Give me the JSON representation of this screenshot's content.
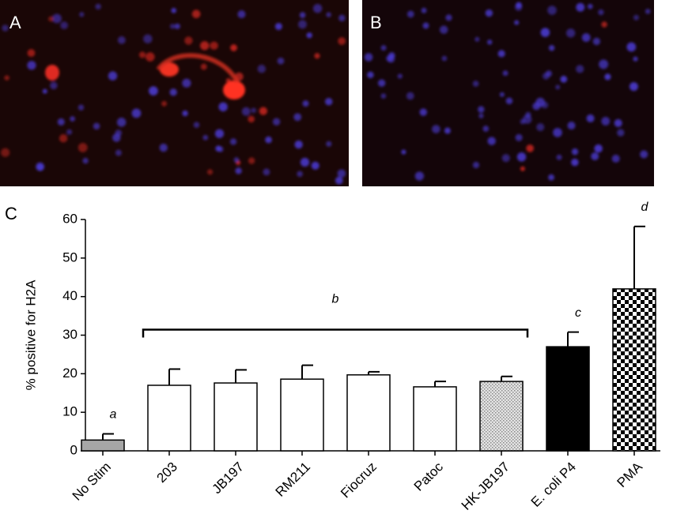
{
  "panels": {
    "a": "A",
    "b": "B",
    "c": "C"
  },
  "chart_data": {
    "type": "bar",
    "ylabel": "% positive for H2A",
    "categories": [
      "No Stim",
      "203",
      "JB197",
      "RM211",
      "Fiocruz",
      "Patoc",
      "HK-JB197",
      "E. coli P4",
      "PMA"
    ],
    "values": [
      2.8,
      17,
      17.6,
      18.6,
      19.7,
      16.6,
      18,
      27,
      42
    ],
    "errors": [
      1.6,
      4.2,
      3.4,
      3.6,
      0.8,
      1.4,
      1.3,
      3.8,
      16.2
    ],
    "fills": [
      "#a6a6a6",
      "#ffffff",
      "#ffffff",
      "#ffffff",
      "#ffffff",
      "#ffffff",
      "dots",
      "#000000",
      "checker"
    ],
    "ylim": [
      0,
      60
    ],
    "yticks": [
      0,
      10,
      20,
      30,
      40,
      50,
      60
    ],
    "annotations": [
      {
        "text": "a",
        "categories": [
          "No Stim"
        ]
      },
      {
        "text": "b",
        "categories": [
          "203",
          "HK-JB197"
        ]
      },
      {
        "text": "c",
        "categories": [
          "E. coli P4"
        ]
      },
      {
        "text": "d",
        "categories": [
          "PMA"
        ]
      }
    ]
  }
}
